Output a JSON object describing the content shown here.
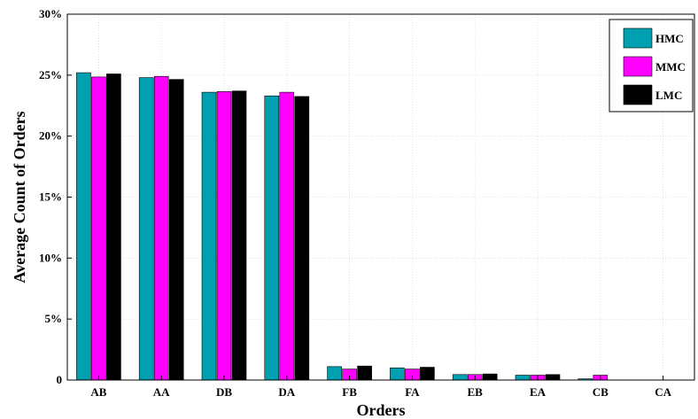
{
  "chart_data": {
    "type": "bar",
    "title": "",
    "xlabel": "Orders",
    "ylabel": "Average Count of Orders",
    "categories": [
      "AB",
      "AA",
      "DB",
      "DA",
      "FB",
      "FA",
      "EB",
      "EA",
      "CB",
      "CA"
    ],
    "series": [
      {
        "name": "HMC",
        "color": "#00a0b0",
        "values": [
          25.2,
          24.8,
          23.6,
          23.3,
          1.1,
          1.0,
          0.45,
          0.4,
          0.1,
          0.0
        ]
      },
      {
        "name": "MMC",
        "color": "#ff00ff",
        "values": [
          24.85,
          24.9,
          23.65,
          23.6,
          0.9,
          0.9,
          0.45,
          0.4,
          0.4,
          0.0
        ]
      },
      {
        "name": "LMC",
        "color": "#000000",
        "values": [
          25.1,
          24.65,
          23.7,
          23.25,
          1.15,
          1.05,
          0.5,
          0.45,
          0.0,
          0.0
        ]
      }
    ],
    "ylim": [
      0,
      30
    ],
    "yticks": [
      0,
      5,
      10,
      15,
      20,
      25,
      30
    ],
    "ytick_labels": [
      "0",
      "5%",
      "10%",
      "15%",
      "20%",
      "25%",
      "30%"
    ],
    "grid": true,
    "legend_position": "top-right"
  }
}
